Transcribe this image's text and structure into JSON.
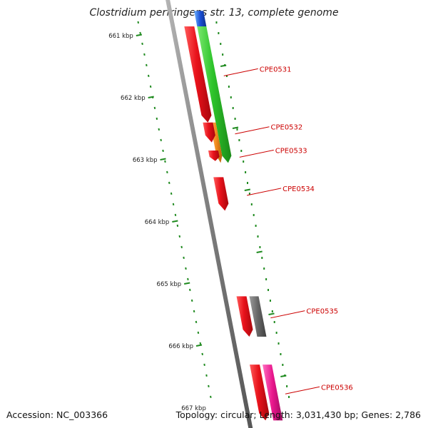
{
  "title": "Clostridium perfringens str. 13, complete genome",
  "footer": {
    "accession": "Accession: NC_003366",
    "topology": "Topology: circular; Length: 3,031,430 bp; Genes: 2,786"
  },
  "ticks": [
    {
      "label": "661 kbp",
      "kbp": 661
    },
    {
      "label": "662 kbp",
      "kbp": 662
    },
    {
      "label": "663 kbp",
      "kbp": 663
    },
    {
      "label": "664 kbp",
      "kbp": 664
    },
    {
      "label": "665 kbp",
      "kbp": 665
    },
    {
      "label": "666 kbp",
      "kbp": 666
    },
    {
      "label": "667 kbp",
      "kbp": 667
    }
  ],
  "genes": [
    {
      "label": "CPE0531",
      "start_kbp": 660.85,
      "end_kbp": 662.4,
      "track": "outer-1",
      "color": "#e8121b"
    },
    {
      "label": "CPE0532",
      "start_kbp": 662.4,
      "end_kbp": 662.72,
      "track": "outer-1",
      "color": "#e8121b"
    },
    {
      "label": "CPE0533",
      "start_kbp": 662.85,
      "end_kbp": 663.02,
      "track": "outer-1",
      "color": "#e8121b"
    },
    {
      "label": "CPE0534",
      "start_kbp": 663.28,
      "end_kbp": 663.82,
      "track": "outer-1",
      "color": "#e8121b"
    },
    {
      "label": "CPE0535",
      "start_kbp": 665.2,
      "end_kbp": 665.85,
      "track": "outer-1",
      "color": "#e8121b"
    },
    {
      "label": "CPE0536",
      "start_kbp": 666.3,
      "end_kbp": 667.2,
      "track": "outer-1",
      "color": "#e8121b"
    }
  ],
  "features": [
    {
      "kind": "green",
      "start_kbp": 660.85,
      "end_kbp": 663.05,
      "track": "outer-2",
      "color": "#2ec42b"
    },
    {
      "kind": "orange",
      "start_kbp": 662.4,
      "end_kbp": 663.05,
      "track": "outer-2b",
      "color": "#f28c1c"
    },
    {
      "kind": "grey",
      "start_kbp": 665.2,
      "end_kbp": 665.85,
      "track": "outer-2",
      "color": "#666666"
    },
    {
      "kind": "pink",
      "start_kbp": 666.3,
      "end_kbp": 667.2,
      "track": "outer-2",
      "color": "#e8168c"
    },
    {
      "kind": "blue",
      "start_kbp": 660.6,
      "end_kbp": 660.85,
      "track": "outer-2",
      "color": "#1a4fd6"
    }
  ],
  "colors": {
    "backbone": "#7d7d7d",
    "tick": "#1f8a1f",
    "label": "#cc0000"
  }
}
